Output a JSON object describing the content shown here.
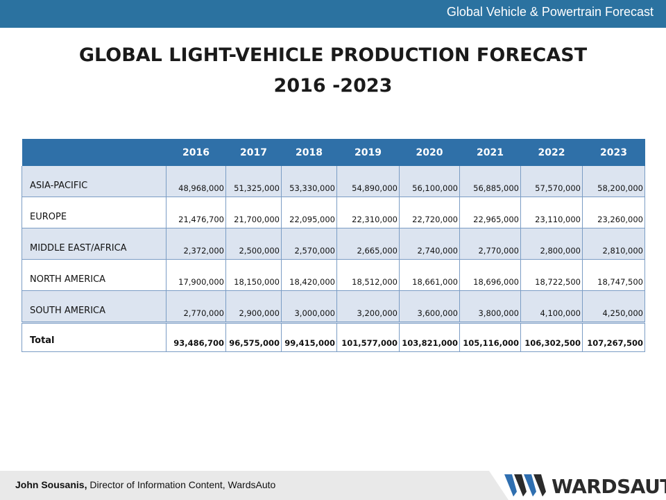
{
  "header": {
    "text": "Global Vehicle & Powertrain Forecast"
  },
  "title": {
    "line1": "GLOBAL LIGHT-VEHICLE PRODUCTION FORECAST",
    "line2": "2016 -2023"
  },
  "table": {
    "columns": [
      "2016",
      "2017",
      "2018",
      "2019",
      "2020",
      "2021",
      "2022",
      "2023"
    ],
    "rows": [
      {
        "region": "ASIA-PACIFIC",
        "values": [
          "48,968,000",
          "51,325,000",
          "53,330,000",
          "54,890,000",
          "56,100,000",
          "56,885,000",
          "57,570,000",
          "58,200,000"
        ]
      },
      {
        "region": "EUROPE",
        "values": [
          "21,476,700",
          "21,700,000",
          "22,095,000",
          "22,310,000",
          "22,720,000",
          "22,965,000",
          "23,110,000",
          "23,260,000"
        ]
      },
      {
        "region": "MIDDLE EAST/AFRICA",
        "values": [
          "2,372,000",
          "2,500,000",
          "2,570,000",
          "2,665,000",
          "2,740,000",
          "2,770,000",
          "2,800,000",
          "2,810,000"
        ]
      },
      {
        "region": "NORTH AMERICA",
        "values": [
          "17,900,000",
          "18,150,000",
          "18,420,000",
          "18,512,000",
          "18,661,000",
          "18,696,000",
          "18,722,500",
          "18,747,500"
        ]
      },
      {
        "region": "SOUTH AMERICA",
        "values": [
          "2,770,000",
          "2,900,000",
          "3,000,000",
          "3,200,000",
          "3,600,000",
          "3,800,000",
          "4,100,000",
          "4,250,000"
        ]
      }
    ],
    "total": {
      "label": "Total",
      "values": [
        "93,486,700",
        "96,575,000",
        "99,415,000",
        "101,577,000",
        "103,821,000",
        "105,116,000",
        "106,302,500",
        "107,267,500"
      ]
    }
  },
  "footer": {
    "author_name": "John Sousanis,",
    "author_title": " Director of Information Content, WardsAuto",
    "logo_text": "WARDSAUTO"
  },
  "colors": {
    "banner": "#2b72a0",
    "table_header": "#2f70a8",
    "row_alt": "#dce4f0",
    "logo_blue": "#2f6fb0",
    "logo_dark": "#2b2b2b"
  }
}
